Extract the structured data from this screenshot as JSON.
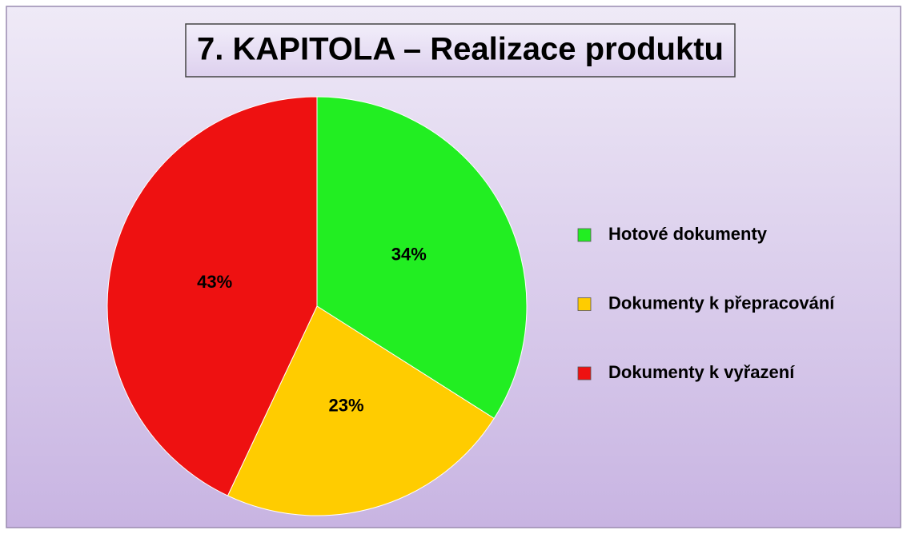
{
  "chart_data": {
    "type": "pie",
    "title": "7. KAPITOLA – Realizace produktu",
    "categories": [
      "Hotové dokumenty",
      "Dokumenty k přepracování",
      "Dokumenty k vyřazení"
    ],
    "values": [
      34,
      23,
      43
    ],
    "value_labels": [
      "34%",
      "23%",
      "43%"
    ],
    "colors": [
      "#22ee22",
      "#ffcc00",
      "#ee1111"
    ],
    "legend": "right"
  }
}
